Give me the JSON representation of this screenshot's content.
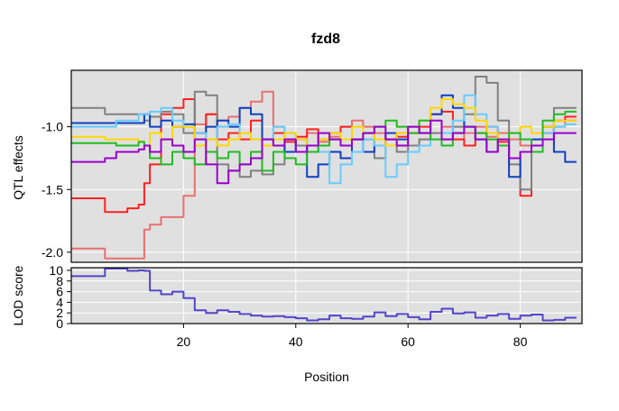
{
  "chart_data": [
    {
      "type": "line",
      "panel": "top",
      "title": "fzd8",
      "ylabel": "QTL effects",
      "xlim": [
        0,
        91
      ],
      "ylim": [
        -2.08,
        -0.55
      ],
      "yticks": [
        -2.0,
        -1.5,
        -1.0
      ],
      "ytick_labels": [
        "-2.0",
        "-1.5",
        "-1.0"
      ],
      "xgrid": [
        20,
        40,
        60,
        80
      ],
      "grid": true,
      "x": [
        0,
        3,
        5,
        6,
        8,
        10,
        12,
        13,
        14,
        16,
        18,
        20,
        22,
        24,
        26,
        28,
        30,
        32,
        34,
        36,
        38,
        40,
        42,
        44,
        46,
        48,
        50,
        52,
        54,
        56,
        58,
        60,
        62,
        64,
        66,
        68,
        70,
        72,
        74,
        76,
        78,
        80,
        82,
        84,
        86,
        88,
        90
      ],
      "series": [
        {
          "color": "#e87070",
          "values": [
            -1.97,
            -1.97,
            -1.97,
            -2.05,
            -2.05,
            -2.05,
            -2.05,
            -1.82,
            -1.78,
            -1.72,
            -1.72,
            -1.55,
            -0.98,
            -0.9,
            -0.95,
            -0.92,
            -0.85,
            -0.8,
            -0.72,
            -1.0,
            -1.1,
            -1.15,
            -1.05,
            -1.12,
            -1.08,
            -1.0,
            -0.95,
            -1.0,
            -1.05,
            -1.1,
            -1.05,
            -1.15,
            -1.1,
            -1.05,
            -1.0,
            -1.1,
            -1.05,
            -1.0,
            -1.08,
            -1.05,
            -1.1,
            -1.15,
            -1.1,
            -1.05,
            -1.0,
            -0.95,
            -0.95
          ]
        },
        {
          "color": "#ff2020",
          "values": [
            -1.57,
            -1.57,
            -1.57,
            -1.68,
            -1.68,
            -1.65,
            -1.62,
            -1.45,
            -1.3,
            -0.9,
            -0.85,
            -0.78,
            -1.05,
            -0.9,
            -1.1,
            -1.05,
            -1.1,
            -0.95,
            -1.15,
            -1.05,
            -1.12,
            -1.08,
            -1.02,
            -1.1,
            -1.05,
            -1.0,
            -1.1,
            -1.05,
            -1.15,
            -1.1,
            -1.08,
            -1.05,
            -1.0,
            -0.9,
            -0.88,
            -1.1,
            -1.15,
            -1.05,
            -1.0,
            -1.12,
            -1.25,
            -1.55,
            -1.2,
            -1.05,
            -0.95,
            -0.92,
            -0.92
          ]
        },
        {
          "color": "#808080",
          "values": [
            -0.85,
            -0.85,
            -0.85,
            -0.9,
            -0.9,
            -0.9,
            -0.9,
            -0.95,
            -0.92,
            -0.88,
            -0.9,
            -1.05,
            -0.72,
            -0.75,
            -1.3,
            -1.35,
            -1.4,
            -1.35,
            -1.38,
            -1.3,
            -1.1,
            -1.15,
            -1.2,
            -1.1,
            -1.05,
            -1.15,
            -1.2,
            -1.1,
            -1.25,
            -1.15,
            -1.2,
            -1.15,
            -1.1,
            -1.05,
            -1.1,
            -1.0,
            -0.9,
            -0.6,
            -0.65,
            -0.95,
            -1.3,
            -1.5,
            -1.2,
            -1.0,
            -0.85,
            -0.85,
            -0.85
          ]
        },
        {
          "color": "#1040c0",
          "values": [
            -0.97,
            -0.97,
            -0.97,
            -0.97,
            -0.97,
            -0.97,
            -0.97,
            -0.9,
            -1.0,
            -0.95,
            -1.0,
            -0.98,
            -1.05,
            -1.0,
            -0.95,
            -1.0,
            -0.85,
            -0.9,
            -1.1,
            -1.15,
            -1.2,
            -1.1,
            -1.4,
            -1.3,
            -1.2,
            -1.25,
            -1.1,
            -1.2,
            -1.15,
            -1.05,
            -1.1,
            -1.0,
            -1.05,
            -0.9,
            -0.75,
            -0.85,
            -1.0,
            -1.1,
            -1.2,
            -1.15,
            -1.4,
            -1.2,
            -1.1,
            -1.0,
            -1.2,
            -1.28,
            -1.28
          ]
        },
        {
          "color": "#66ccff",
          "values": [
            -1.0,
            -1.0,
            -1.0,
            -1.0,
            -0.95,
            -0.95,
            -0.9,
            -0.9,
            -0.88,
            -0.85,
            -0.95,
            -1.0,
            -1.05,
            -1.1,
            -1.0,
            -0.98,
            -1.05,
            -1.1,
            -1.15,
            -1.0,
            -1.05,
            -1.1,
            -1.15,
            -1.2,
            -1.45,
            -1.3,
            -1.2,
            -1.1,
            -1.15,
            -1.4,
            -1.3,
            -1.2,
            -1.15,
            -1.1,
            -1.05,
            -0.95,
            -0.75,
            -0.9,
            -1.0,
            -1.1,
            -1.05,
            -1.1,
            -1.2,
            -1.05,
            -1.0,
            -0.98,
            -0.98
          ]
        },
        {
          "color": "#ffd700",
          "values": [
            -1.08,
            -1.08,
            -1.08,
            -1.1,
            -1.1,
            -1.1,
            -1.12,
            -1.15,
            -1.05,
            -1.1,
            -1.0,
            -1.0,
            -1.15,
            -1.1,
            -1.15,
            -1.1,
            -1.05,
            -1.1,
            -1.15,
            -1.1,
            -1.05,
            -1.1,
            -1.15,
            -1.1,
            -1.05,
            -1.1,
            -1.0,
            -1.05,
            -1.1,
            -1.15,
            -1.05,
            -1.0,
            -0.95,
            -0.85,
            -0.78,
            -0.82,
            -0.85,
            -0.95,
            -1.05,
            -1.1,
            -1.05,
            -1.0,
            -1.05,
            -1.0,
            -0.95,
            -0.95,
            -0.95
          ]
        },
        {
          "color": "#22bb22",
          "values": [
            -1.13,
            -1.13,
            -1.13,
            -1.13,
            -1.15,
            -1.15,
            -1.12,
            -1.15,
            -1.25,
            -1.3,
            -1.2,
            -1.25,
            -1.3,
            -1.2,
            -1.25,
            -1.2,
            -1.3,
            -1.2,
            -1.35,
            -1.2,
            -1.25,
            -1.3,
            -1.2,
            -1.15,
            -1.1,
            -1.15,
            -1.1,
            -1.05,
            -1.0,
            -0.95,
            -1.0,
            -1.05,
            -0.95,
            -1.1,
            -1.15,
            -1.05,
            -1.0,
            -1.05,
            -1.1,
            -1.15,
            -1.05,
            -1.1,
            -1.2,
            -0.95,
            -0.9,
            -0.88,
            -0.88
          ]
        },
        {
          "color": "#9900cc",
          "values": [
            -1.28,
            -1.28,
            -1.28,
            -1.25,
            -1.2,
            -1.2,
            -1.18,
            -1.15,
            -1.2,
            -1.1,
            -1.15,
            -1.2,
            -1.1,
            -1.3,
            -1.45,
            -1.35,
            -1.3,
            -1.25,
            -1.1,
            -1.15,
            -1.1,
            -1.2,
            -1.15,
            -1.05,
            -1.1,
            -1.15,
            -1.1,
            -1.05,
            -1.0,
            -1.1,
            -1.15,
            -1.0,
            -1.05,
            -0.95,
            -1.1,
            -1.05,
            -1.0,
            -1.1,
            -1.2,
            -1.1,
            -1.25,
            -1.2,
            -1.15,
            -1.1,
            -1.05,
            -1.05,
            -1.05
          ]
        }
      ]
    },
    {
      "type": "line",
      "panel": "bottom",
      "ylabel": "LOD score",
      "xlabel": "Position",
      "xlim": [
        0,
        91
      ],
      "ylim": [
        0,
        10.5
      ],
      "yticks": [
        0,
        2,
        4,
        6,
        8,
        10
      ],
      "ytick_labels": [
        "0",
        "2",
        "4",
        "6",
        "8",
        "10"
      ],
      "xticks": [
        20,
        40,
        60,
        80
      ],
      "xtick_labels": [
        "20",
        "40",
        "60",
        "80"
      ],
      "grid": true,
      "x": [
        0,
        3,
        5,
        6,
        8,
        10,
        12,
        13,
        14,
        16,
        18,
        20,
        22,
        24,
        26,
        28,
        30,
        32,
        34,
        36,
        38,
        40,
        42,
        44,
        46,
        48,
        50,
        52,
        54,
        56,
        58,
        60,
        62,
        64,
        66,
        68,
        70,
        72,
        74,
        76,
        78,
        80,
        82,
        84,
        86,
        88,
        90
      ],
      "series": [
        {
          "color": "#5544cc",
          "values": [
            8.9,
            8.9,
            8.9,
            10.8,
            10.6,
            9.9,
            10.0,
            9.9,
            6.2,
            5.5,
            6.0,
            4.8,
            2.5,
            2.0,
            2.5,
            2.2,
            1.8,
            1.5,
            1.3,
            1.4,
            1.2,
            1.0,
            0.6,
            0.8,
            1.5,
            1.0,
            0.9,
            1.3,
            2.1,
            1.4,
            1.8,
            1.2,
            0.8,
            2.2,
            2.8,
            1.9,
            2.1,
            1.1,
            1.5,
            1.8,
            0.9,
            1.5,
            1.7,
            0.6,
            0.7,
            1.1,
            1.1
          ]
        }
      ]
    }
  ]
}
